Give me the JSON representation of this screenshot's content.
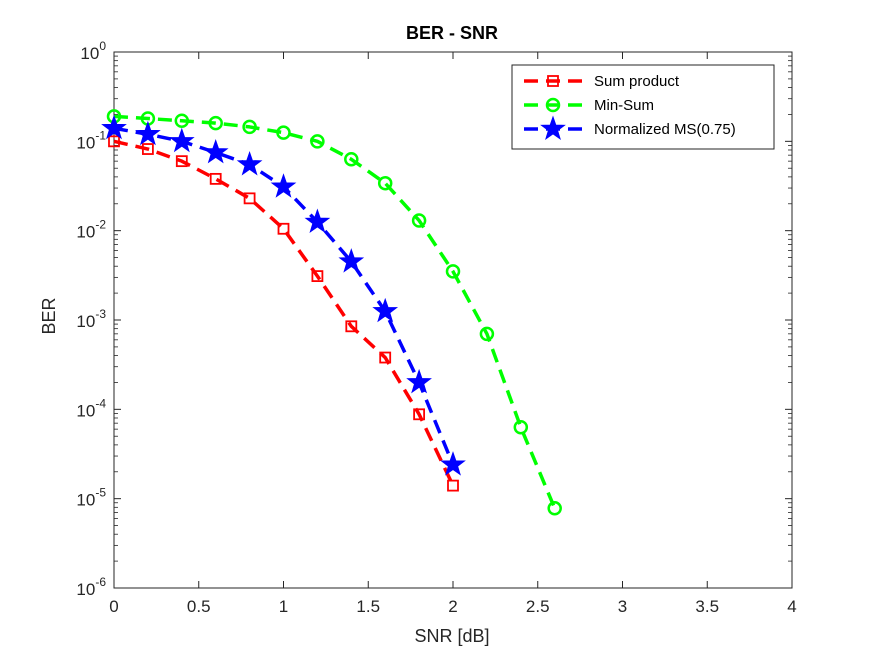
{
  "chart_data": {
    "type": "line",
    "title": "BER - SNR",
    "xlabel": "SNR [dB]",
    "ylabel": "BER",
    "xlim": [
      0,
      4
    ],
    "ylim": [
      1e-06,
      1
    ],
    "yscale": "log",
    "grid": false,
    "legend_position": "top-right",
    "x_ticks": [
      {
        "value": 0,
        "label": "0"
      },
      {
        "value": 0.5,
        "label": "0.5"
      },
      {
        "value": 1,
        "label": "1"
      },
      {
        "value": 1.5,
        "label": "1.5"
      },
      {
        "value": 2,
        "label": "2"
      },
      {
        "value": 2.5,
        "label": "2.5"
      },
      {
        "value": 3,
        "label": "3"
      },
      {
        "value": 3.5,
        "label": "3.5"
      },
      {
        "value": 4,
        "label": "4"
      }
    ],
    "y_ticks": [
      {
        "value": 1e-06,
        "base": "10",
        "exp": "-6"
      },
      {
        "value": 1e-05,
        "base": "10",
        "exp": "-5"
      },
      {
        "value": 0.0001,
        "base": "10",
        "exp": "-4"
      },
      {
        "value": 0.001,
        "base": "10",
        "exp": "-3"
      },
      {
        "value": 0.01,
        "base": "10",
        "exp": "-2"
      },
      {
        "value": 0.1,
        "base": "10",
        "exp": "-1"
      },
      {
        "value": 1,
        "base": "10",
        "exp": "0"
      }
    ],
    "series": [
      {
        "name": "Sum product",
        "color": "#ff0000",
        "marker": "square",
        "line_style": "dashed",
        "x": [
          0,
          0.2,
          0.4,
          0.6,
          0.8,
          1.0,
          1.2,
          1.4,
          1.6,
          1.8,
          2.0
        ],
        "y": [
          0.1,
          0.082,
          0.06,
          0.038,
          0.023,
          0.0105,
          0.0031,
          0.00085,
          0.00038,
          8.8e-05,
          1.4e-05
        ]
      },
      {
        "name": "Min-Sum",
        "color": "#00ff00",
        "marker": "circle",
        "line_style": "dashed",
        "x": [
          0,
          0.2,
          0.4,
          0.6,
          0.8,
          1.0,
          1.2,
          1.4,
          1.6,
          1.8,
          2.0,
          2.2,
          2.4,
          2.6
        ],
        "y": [
          0.19,
          0.18,
          0.17,
          0.16,
          0.145,
          0.125,
          0.1,
          0.063,
          0.034,
          0.013,
          0.0035,
          0.0007,
          6.3e-05,
          7.8e-06
        ]
      },
      {
        "name": "Normalized MS(0.75)",
        "color": "#0000ff",
        "marker": "star",
        "line_style": "dashed",
        "x": [
          0,
          0.2,
          0.4,
          0.6,
          0.8,
          1.0,
          1.2,
          1.4,
          1.6,
          1.8,
          2.0
        ],
        "y": [
          0.14,
          0.12,
          0.1,
          0.075,
          0.055,
          0.031,
          0.0125,
          0.0045,
          0.00125,
          0.0002,
          2.4e-05
        ]
      }
    ]
  }
}
